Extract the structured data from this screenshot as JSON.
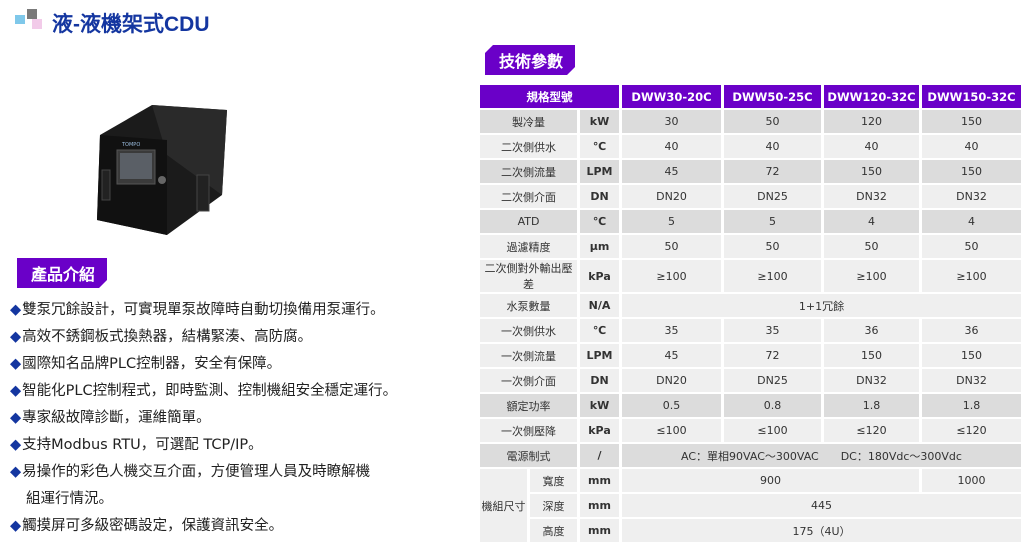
{
  "title": "液-液機架式CDU",
  "spec_tag": "技術參數",
  "intro_tag": "產品介紹",
  "device_brand": "TOMPO",
  "features": [
    "雙泵冗餘設計，可實現單泵故障時自動切換備用泵運行。",
    "高效不銹鋼板式換熱器，結構緊湊、高防腐。",
    "國際知名品牌PLC控制器，安全有保障。",
    "智能化PLC控制程式，即時監測、控制機組安全穩定運行。",
    "專家級故障診斷，運維簡單。",
    "支持Modbus RTU，可選配 TCP/IP。",
    "易操作的彩色人機交互介面，方便管理人員及時瞭解機",
    "組運行情況。",
    "觸摸屏可多級密碼設定，保護資訊安全。"
  ],
  "colors": {
    "accent": "#6a00c8",
    "title": "#1436a0"
  },
  "table": {
    "header": [
      "規格型號",
      "DWW30-20C",
      "DWW50-25C",
      "DWW120-32C",
      "DWW150-32C"
    ],
    "rows": [
      {
        "s": "d",
        "cells": [
          "製冷量",
          "kW",
          "30",
          "50",
          "120",
          "150"
        ]
      },
      {
        "s": "l",
        "cells": [
          "二次側供水",
          "℃",
          "40",
          "40",
          "40",
          "40"
        ]
      },
      {
        "s": "d",
        "cells": [
          "二次側流量",
          "LPM",
          "45",
          "72",
          "150",
          "150"
        ]
      },
      {
        "s": "l",
        "cells": [
          "二次側介面",
          "DN",
          "DN20",
          "DN25",
          "DN32",
          "DN32"
        ]
      },
      {
        "s": "d",
        "cells": [
          "ATD",
          "℃",
          "5",
          "5",
          "4",
          "4"
        ]
      },
      {
        "s": "l",
        "cells": [
          "過濾精度",
          "μm",
          "50",
          "50",
          "50",
          "50"
        ]
      },
      {
        "s": "l",
        "cells": [
          "二次側對外輸出壓差",
          "kPa",
          "≥100",
          "≥100",
          "≥100",
          "≥100"
        ]
      },
      {
        "s": "l",
        "cells": [
          "水泵數量",
          "N/A",
          "1+1冗餘"
        ],
        "span": [
          1,
          1,
          4
        ]
      },
      {
        "s": "l",
        "cells": [
          "一次側供水",
          "℃",
          "35",
          "35",
          "36",
          "36"
        ]
      },
      {
        "s": "l",
        "cells": [
          "一次側流量",
          "LPM",
          "45",
          "72",
          "150",
          "150"
        ]
      },
      {
        "s": "l",
        "cells": [
          "一次側介面",
          "DN",
          "DN20",
          "DN25",
          "DN32",
          "DN32"
        ]
      },
      {
        "s": "d",
        "cells": [
          "額定功率",
          "kW",
          "0.5",
          "0.8",
          "1.8",
          "1.8"
        ]
      },
      {
        "s": "l",
        "cells": [
          "一次側壓降",
          "kPa",
          "≤100",
          "≤100",
          "≤120",
          "≤120"
        ]
      },
      {
        "s": "d",
        "cells": [
          "電源制式",
          "/",
          "AC：單相90VAC～300VAC　　DC：180Vdc～300Vdc"
        ],
        "span": [
          1,
          1,
          4
        ]
      }
    ],
    "dims": {
      "label": "機組尺寸",
      "rows": [
        {
          "cells": [
            "寬度",
            "mm",
            "900",
            "1000"
          ],
          "span": [
            1,
            1,
            3,
            1
          ]
        },
        {
          "cells": [
            "深度",
            "mm",
            "445"
          ],
          "span": [
            1,
            1,
            4
          ]
        },
        {
          "cells": [
            "高度",
            "mm",
            "175（4U）"
          ],
          "span": [
            1,
            1,
            4
          ]
        }
      ]
    }
  }
}
